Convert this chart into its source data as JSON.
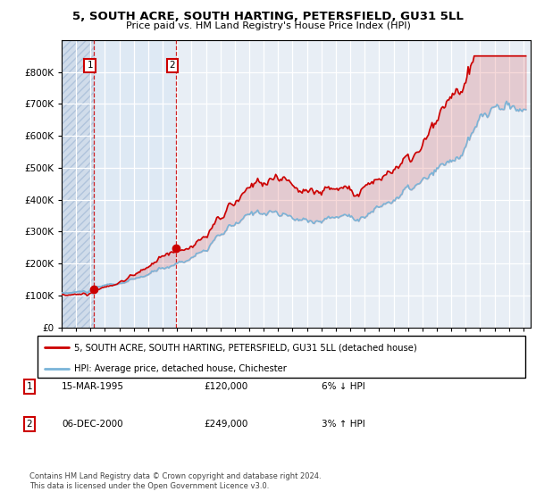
{
  "title": "5, SOUTH ACRE, SOUTH HARTING, PETERSFIELD, GU31 5LL",
  "subtitle": "Price paid vs. HM Land Registry's House Price Index (HPI)",
  "legend_line1": "5, SOUTH ACRE, SOUTH HARTING, PETERSFIELD, GU31 5LL (detached house)",
  "legend_line2": "HPI: Average price, detached house, Chichester",
  "table_rows": [
    {
      "num": 1,
      "date": "15-MAR-1995",
      "price": "£120,000",
      "change": "6% ↓ HPI"
    },
    {
      "num": 2,
      "date": "06-DEC-2000",
      "price": "£249,000",
      "change": "3% ↑ HPI"
    }
  ],
  "footnote": "Contains HM Land Registry data © Crown copyright and database right 2024.\nThis data is licensed under the Open Government Licence v3.0.",
  "sale_dates": [
    1995.21,
    2000.92
  ],
  "sale_prices": [
    120000,
    249000
  ],
  "hpi_color": "#7ab4d8",
  "price_color": "#cc0000",
  "ylim": [
    0,
    900000
  ],
  "yticks": [
    0,
    100000,
    200000,
    300000,
    400000,
    500000,
    600000,
    700000,
    800000
  ],
  "xmin": 1993.0,
  "xmax": 2025.5
}
